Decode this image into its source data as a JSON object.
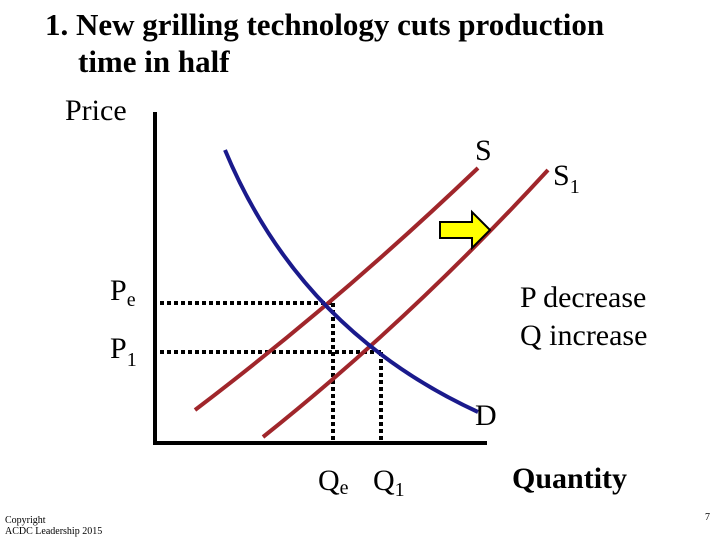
{
  "title": [
    "1. New grilling technology cuts production",
    "time in half"
  ],
  "axes": {
    "y_label": "Price",
    "x_label": "Quantity"
  },
  "curves": {
    "supply": {
      "label": "S"
    },
    "supply_new": {
      "label": "S",
      "subscript": "1"
    },
    "demand": {
      "label": "D"
    }
  },
  "prices": [
    {
      "label": "P",
      "subscript": "e"
    },
    {
      "label": "P",
      "subscript": "1"
    }
  ],
  "quantities": [
    {
      "label": "Q",
      "subscript": "e"
    },
    {
      "label": "Q",
      "subscript": "1"
    }
  ],
  "annotation": [
    "P decrease",
    "Q increase"
  ],
  "footer": {
    "copyright": [
      "Copyright",
      "ACDC Leadership 2015"
    ],
    "page": "7"
  }
}
